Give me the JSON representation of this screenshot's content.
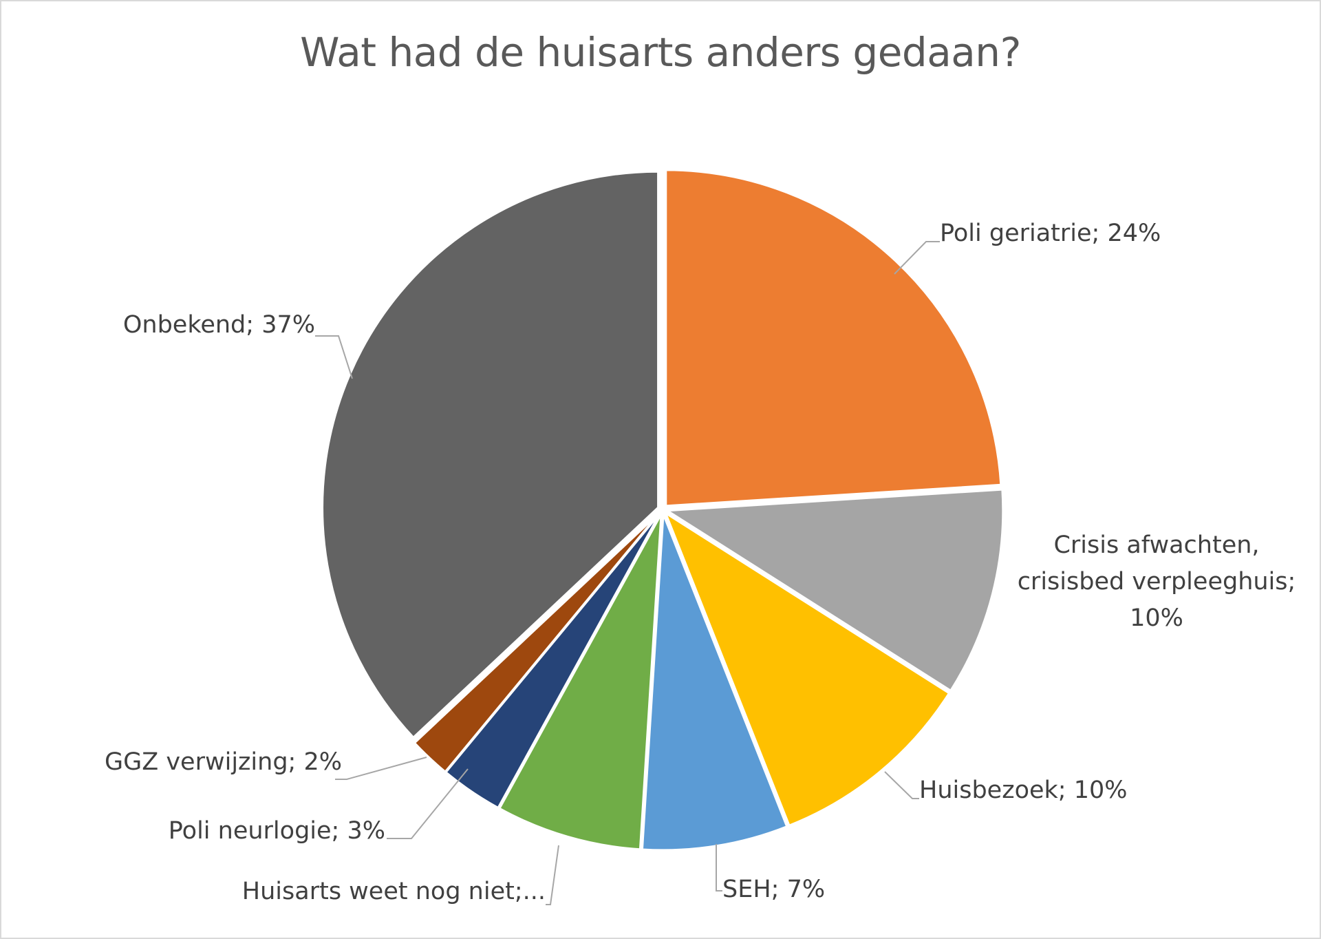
{
  "chart_data": {
    "type": "pie",
    "title": "Wat had de huisarts anders gedaan?",
    "slices": [
      {
        "label": "Poli geriatrie",
        "value": 24,
        "display": "Poli geriatrie; 24%",
        "color": "#ED7D31"
      },
      {
        "label": "Crisis afwachten, crisisbed verpleeghuis",
        "value": 10,
        "display": "Crisis afwachten, crisisbed verpleeghuis; 10%",
        "color": "#A5A5A5"
      },
      {
        "label": "Huisbezoek",
        "value": 10,
        "display": "Huisbezoek; 10%",
        "color": "#FFC000"
      },
      {
        "label": "SEH",
        "value": 7,
        "display": "SEH; 7%",
        "color": "#5B9BD5"
      },
      {
        "label": "Huisarts weet nog niet",
        "value": 7,
        "display": "Huisarts weet nog niet;...",
        "color": "#70AD47"
      },
      {
        "label": "Poli neurlogie",
        "value": 3,
        "display": "Poli neurlogie; 3%",
        "color": "#264478"
      },
      {
        "label": "GGZ verwijzing",
        "value": 2,
        "display": "GGZ verwijzing; 2%",
        "color": "#9E480E"
      },
      {
        "label": "Onbekend",
        "value": 37,
        "display": "Onbekend; 37%",
        "color": "#636363"
      }
    ],
    "data_labels": {
      "poli_geriatrie": "Poli geriatrie; 24%",
      "crisis_line1": "Crisis afwachten,",
      "crisis_line2": "crisisbed verpleeghuis;",
      "crisis_line3": "10%",
      "huisbezoek": "Huisbezoek; 10%",
      "seh": "SEH; 7%",
      "huisarts": "Huisarts weet nog niet;...",
      "poli_neurlogie": "Poli neurlogie; 3%",
      "ggz": "GGZ verwijzing; 2%",
      "onbekend": "Onbekend; 37%"
    },
    "legend": "none"
  }
}
